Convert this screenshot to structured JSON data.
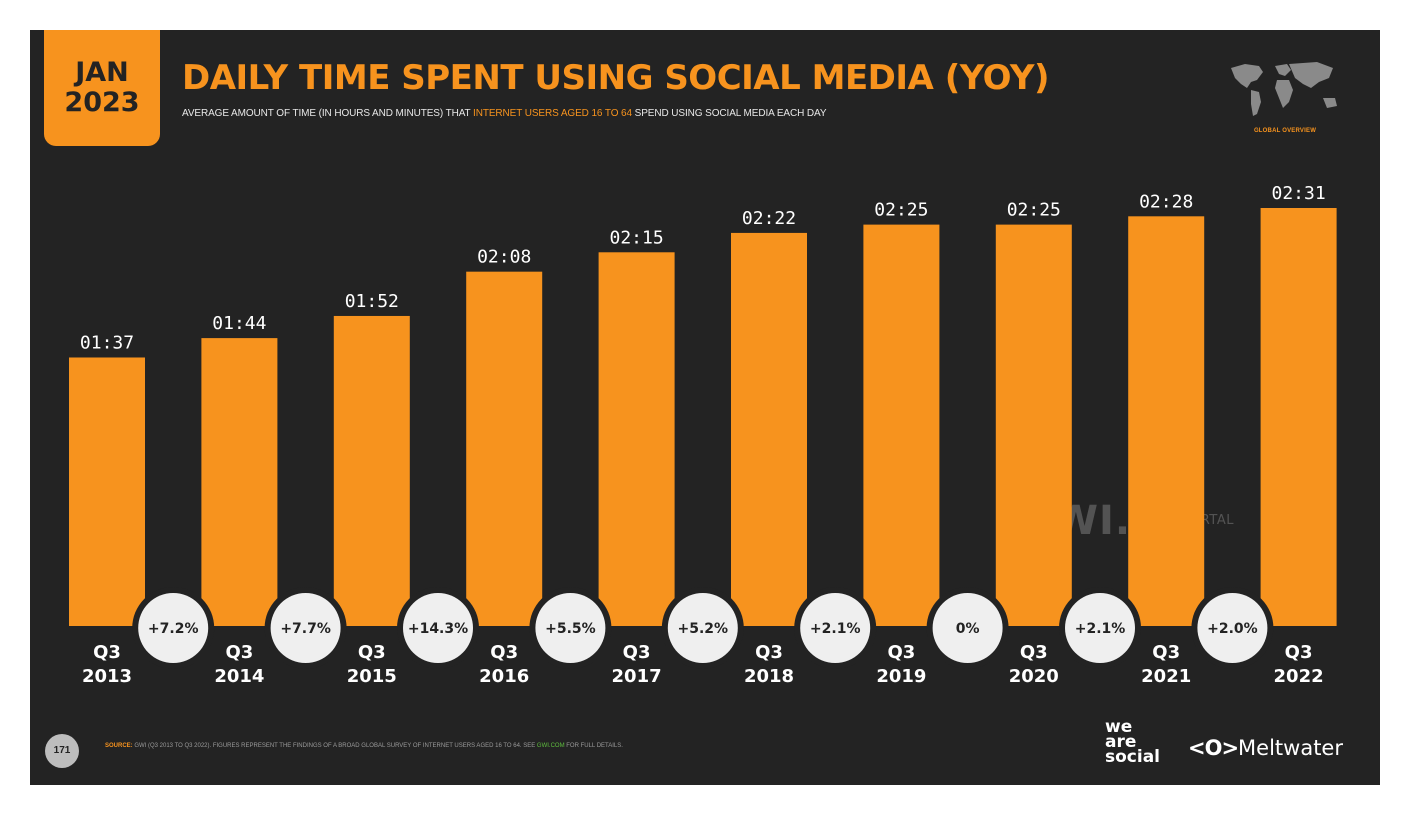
{
  "header": {
    "date_month": "JAN",
    "date_year": "2023",
    "title": "DAILY TIME SPENT USING SOCIAL MEDIA (YOY)",
    "subtitle_pre": "AVERAGE AMOUNT OF TIME (IN HOURS AND MINUTES) THAT ",
    "subtitle_highlight": "INTERNET USERS AGED 16 TO 64",
    "subtitle_post": " SPEND USING SOCIAL MEDIA EACH DAY",
    "badge": "GLOBAL OVERVIEW"
  },
  "chart_data": {
    "type": "bar",
    "title": "DAILY TIME SPENT USING SOCIAL MEDIA (YOY)",
    "categories": [
      [
        "Q3",
        "2013"
      ],
      [
        "Q3",
        "2014"
      ],
      [
        "Q3",
        "2015"
      ],
      [
        "Q3",
        "2016"
      ],
      [
        "Q3",
        "2017"
      ],
      [
        "Q3",
        "2018"
      ],
      [
        "Q3",
        "2019"
      ],
      [
        "Q3",
        "2020"
      ],
      [
        "Q3",
        "2021"
      ],
      [
        "Q3",
        "2022"
      ]
    ],
    "values_minutes": [
      97,
      104,
      112,
      128,
      135,
      142,
      145,
      145,
      148,
      151
    ],
    "value_labels": [
      "01:37",
      "01:44",
      "01:52",
      "02:08",
      "02:15",
      "02:22",
      "02:25",
      "02:25",
      "02:28",
      "02:31"
    ],
    "yoy_changes": [
      "+7.2%",
      "+7.7%",
      "+14.3%",
      "+5.5%",
      "+5.2%",
      "+2.1%",
      "0%",
      "+2.1%",
      "+2.0%"
    ],
    "ylim": [
      0,
      151
    ],
    "bar_color": "#f7931e",
    "grid": false
  },
  "watermarks": {
    "gwi": "GWI.",
    "datareportal": "DATAREPORTAL"
  },
  "footer": {
    "page_number": "171",
    "source_label": "SOURCE:",
    "source_text": " GWI (Q3 2013 TO Q3 2022). FIGURES REPRESENT THE FINDINGS OF A BROAD GLOBAL SURVEY OF INTERNET USERS AGED 16 TO 64. SEE ",
    "source_link": "GWI.COM",
    "source_end": " FOR FULL DETAILS.",
    "logo_we": "we",
    "logo_are": "are",
    "logo_social": "social",
    "logo_mw_symbol": "<O>",
    "logo_mw_text": "Meltwater"
  }
}
